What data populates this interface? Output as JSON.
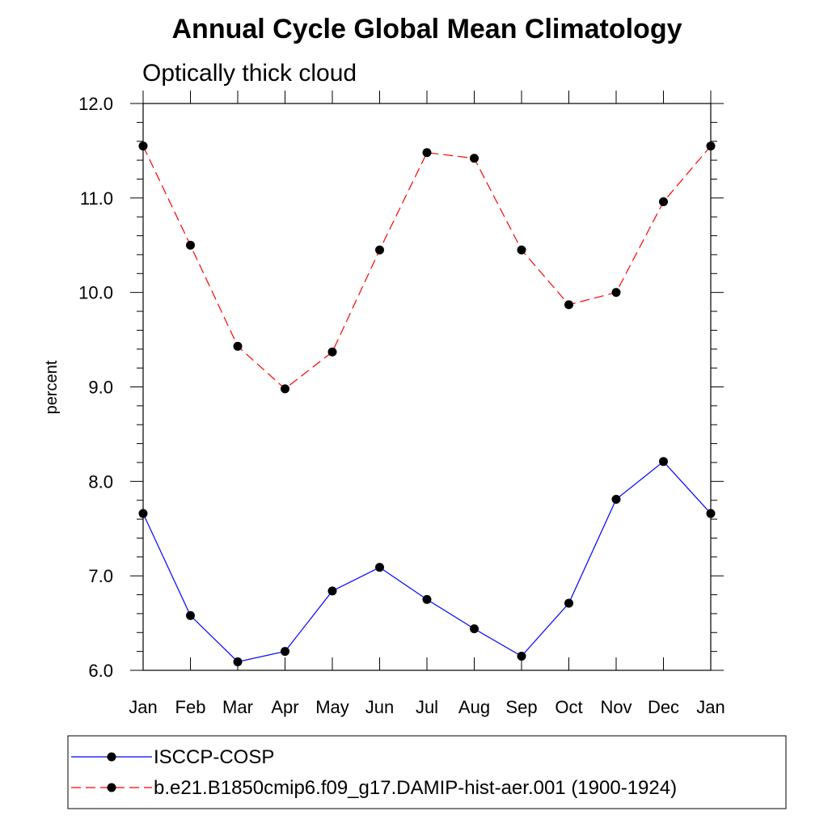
{
  "chart_data": {
    "type": "line",
    "title": "Annual Cycle Global Mean Climatology",
    "subtitle": "Optically thick cloud",
    "xlabel": "",
    "ylabel": "percent",
    "categories": [
      "Jan",
      "Feb",
      "Mar",
      "Apr",
      "May",
      "Jun",
      "Jul",
      "Aug",
      "Sep",
      "Oct",
      "Nov",
      "Dec",
      "Jan"
    ],
    "ylim": [
      6.0,
      12.0
    ],
    "yticks": [
      "6.0",
      "7.0",
      "8.0",
      "9.0",
      "10.0",
      "11.0",
      "12.0"
    ],
    "grid": false,
    "legend_position": "bottom",
    "series": [
      {
        "name": "ISCCP-COSP",
        "color": "#0000ff",
        "style": "solid",
        "marker": "filled-circle",
        "values": [
          7.66,
          6.58,
          6.09,
          6.2,
          6.84,
          7.09,
          6.75,
          6.44,
          6.15,
          6.71,
          7.81,
          8.21,
          7.66
        ]
      },
      {
        "name": "b.e21.B1850cmip6.f09_g17.DAMIP-hist-aer.001 (1900-1924)",
        "color": "#ff0000",
        "style": "dashed",
        "marker": "filled-circle",
        "values": [
          11.55,
          10.5,
          9.43,
          8.98,
          9.37,
          10.45,
          11.48,
          11.42,
          10.45,
          9.87,
          10.0,
          10.96,
          11.55
        ]
      }
    ]
  }
}
